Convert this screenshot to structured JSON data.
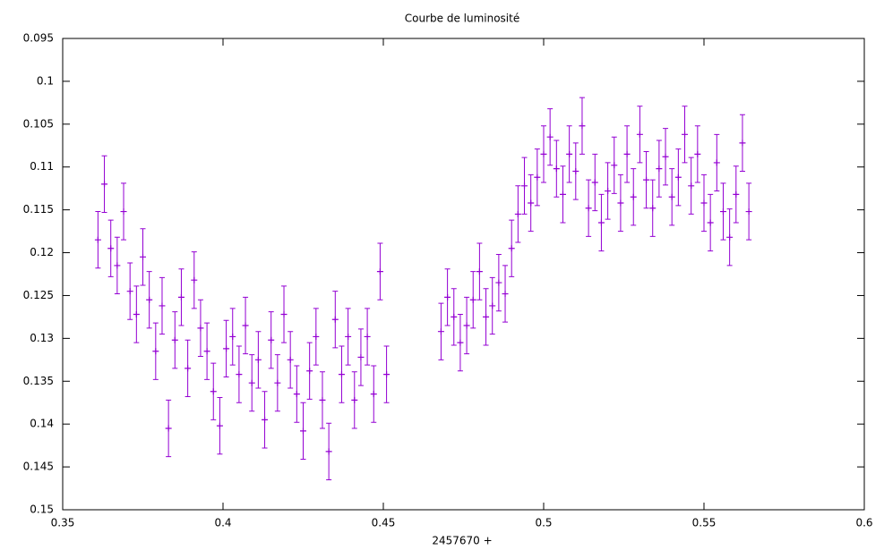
{
  "chart_data": {
    "type": "scatter",
    "title": "Courbe de luminosité",
    "x_label": "2457670 +",
    "xlim": [
      0.35,
      0.6
    ],
    "xticks": [
      0.35,
      0.4,
      0.45,
      0.5,
      0.55,
      0.6
    ],
    "ylim": [
      0.095,
      0.15
    ],
    "yticks": [
      0.095,
      0.1,
      0.105,
      0.11,
      0.115,
      0.12,
      0.125,
      0.13,
      0.135,
      0.14,
      0.145,
      0.15
    ],
    "y_inverted": true,
    "grid": false,
    "series": [
      {
        "color": "#9400d3",
        "error": 0.0033,
        "x": [
          0.361,
          0.363,
          0.365,
          0.367,
          0.369,
          0.371,
          0.373,
          0.375,
          0.377,
          0.379,
          0.381,
          0.383,
          0.385,
          0.387,
          0.389,
          0.391,
          0.393,
          0.395,
          0.397,
          0.399,
          0.401,
          0.403,
          0.405,
          0.407,
          0.409,
          0.411,
          0.413,
          0.415,
          0.417,
          0.419,
          0.421,
          0.423,
          0.425,
          0.427,
          0.429,
          0.431,
          0.433,
          0.435,
          0.437,
          0.439,
          0.441,
          0.443,
          0.445,
          0.447,
          0.449,
          0.451,
          0.468,
          0.47,
          0.472,
          0.474,
          0.476,
          0.478,
          0.48,
          0.482,
          0.484,
          0.486,
          0.488,
          0.49,
          0.492,
          0.494,
          0.496,
          0.498,
          0.5,
          0.502,
          0.504,
          0.506,
          0.508,
          0.51,
          0.512,
          0.514,
          0.516,
          0.518,
          0.52,
          0.522,
          0.524,
          0.526,
          0.528,
          0.53,
          0.532,
          0.534,
          0.536,
          0.538,
          0.54,
          0.542,
          0.544,
          0.546,
          0.548,
          0.55,
          0.552,
          0.554,
          0.556,
          0.558,
          0.56,
          0.562,
          0.564
        ],
        "values": [
          0.1185,
          0.112,
          0.1195,
          0.1215,
          0.1152,
          0.1245,
          0.1272,
          0.1205,
          0.1255,
          0.1315,
          0.1262,
          0.1405,
          0.1302,
          0.1252,
          0.1335,
          0.1232,
          0.1288,
          0.1315,
          0.1362,
          0.1402,
          0.1312,
          0.1298,
          0.1342,
          0.1285,
          0.1352,
          0.1325,
          0.1395,
          0.1302,
          0.1352,
          0.1272,
          0.1325,
          0.1365,
          0.1408,
          0.1338,
          0.1298,
          0.1372,
          0.1432,
          0.1278,
          0.1342,
          0.1298,
          0.1372,
          0.1322,
          0.1298,
          0.1365,
          0.1222,
          0.1342,
          0.1292,
          0.1252,
          0.1275,
          0.1305,
          0.1285,
          0.1255,
          0.1222,
          0.1275,
          0.1262,
          0.1235,
          0.1248,
          0.1195,
          0.1155,
          0.1122,
          0.1142,
          0.1112,
          0.1085,
          0.1065,
          0.1102,
          0.1132,
          0.1085,
          0.1105,
          0.1052,
          0.1148,
          0.1118,
          0.1165,
          0.1128,
          0.1098,
          0.1142,
          0.1085,
          0.1135,
          0.1062,
          0.1115,
          0.1148,
          0.1102,
          0.1088,
          0.1135,
          0.1112,
          0.1062,
          0.1122,
          0.1085,
          0.1142,
          0.1165,
          0.1095,
          0.1152,
          0.1182,
          0.1132,
          0.1072,
          0.1152
        ]
      }
    ]
  }
}
